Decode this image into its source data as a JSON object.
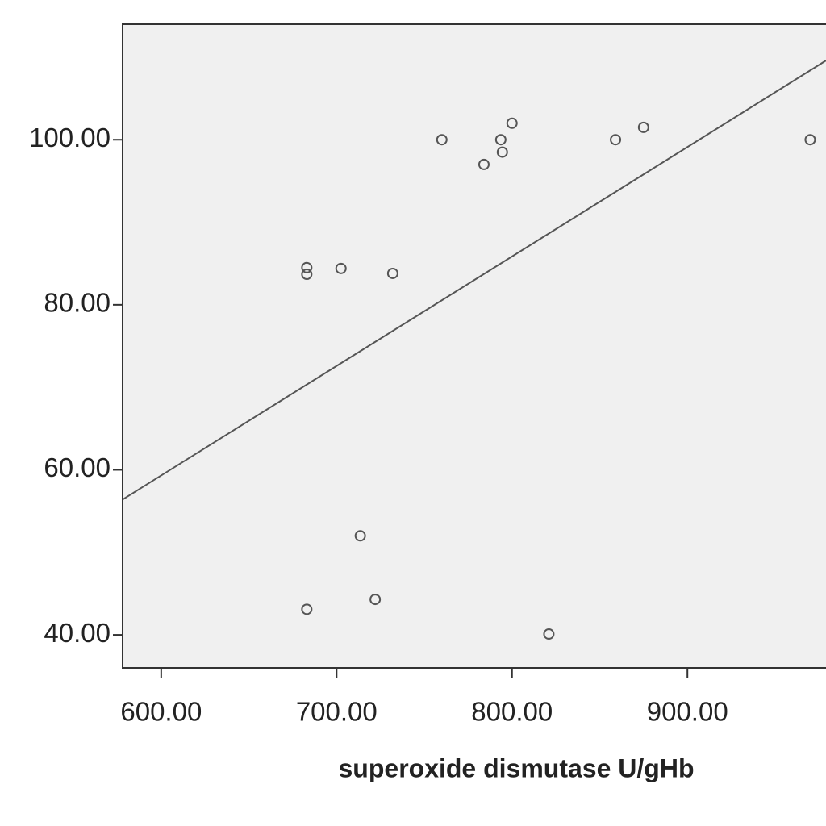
{
  "chart_data": {
    "type": "scatter",
    "x_label": "superoxide dismutase U/gHb",
    "x": [
      760,
      793.6,
      800,
      794.5,
      784,
      859,
      875,
      970,
      683,
      683,
      702.5,
      732,
      713.5,
      722,
      683,
      821
    ],
    "values": [
      100,
      100,
      102,
      98.5,
      97,
      100,
      101.5,
      100,
      84.5,
      83.7,
      84.4,
      83.8,
      52,
      44.3,
      43.1,
      40.1
    ],
    "color": "#555555",
    "fit_line": {
      "x": [
        578,
        979
      ],
      "y": [
        56.4,
        109.6
      ]
    },
    "xlim": [
      578,
      979
    ],
    "ylim": [
      36,
      114
    ],
    "xticks": [
      {
        "value": 600,
        "label": "600.00"
      },
      {
        "value": 700,
        "label": "700.00"
      },
      {
        "value": 800,
        "label": "800.00"
      },
      {
        "value": 900,
        "label": "900.00"
      }
    ],
    "yticks": [
      {
        "value": 40,
        "label": "40.00"
      },
      {
        "value": 60,
        "label": "60.00"
      },
      {
        "value": 80,
        "label": "80.00"
      },
      {
        "value": 100,
        "label": "100.00"
      }
    ],
    "background": "#f0f0f0"
  }
}
